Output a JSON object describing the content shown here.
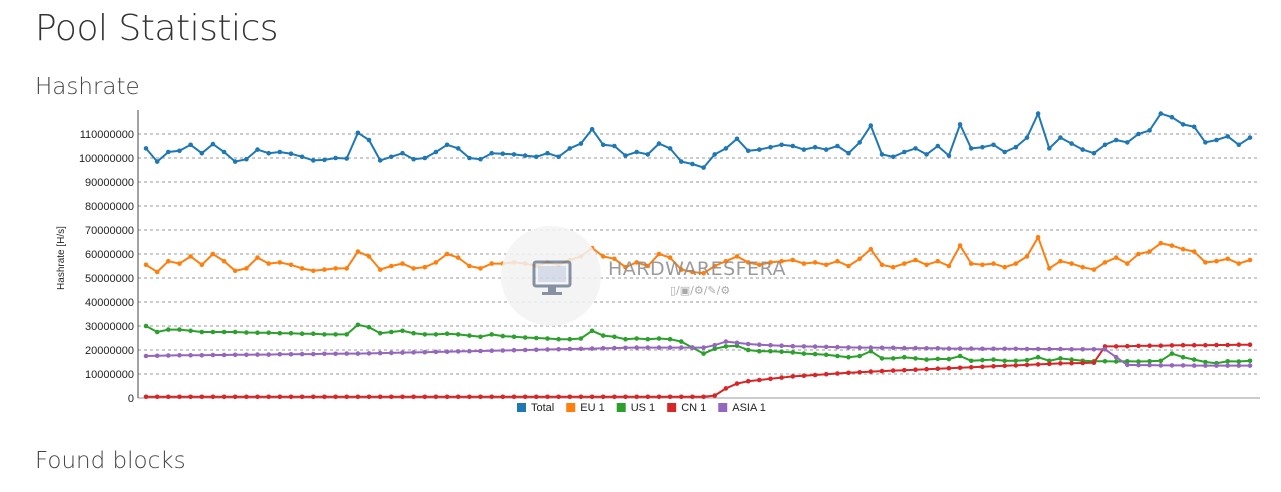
{
  "page": {
    "title": "Pool Statistics",
    "hashrate_title": "Hashrate",
    "found_blocks_title": "Found blocks"
  },
  "watermark": {
    "text": "HARDWARESFERA",
    "subtext": "▯/▣/⚙/✎/⚙",
    "icon": "monitor-icon"
  },
  "chart_data": {
    "type": "line",
    "title": "",
    "xlabel": "",
    "ylabel": "Hashrate [H/s]",
    "ylim": [
      0,
      120000000
    ],
    "yticks": [
      0,
      10000000,
      20000000,
      30000000,
      40000000,
      50000000,
      60000000,
      70000000,
      80000000,
      90000000,
      100000000,
      110000000
    ],
    "ytick_labels": [
      "0",
      "10000000",
      "20000000",
      "30000000",
      "40000000",
      "50000000",
      "60000000",
      "70000000",
      "80000000",
      "90000000",
      "100000000",
      "110000000"
    ],
    "grid": true,
    "legend_position": "bottom",
    "n_points": 100,
    "series": [
      {
        "name": "Total",
        "color": "#1f77b4",
        "values": [
          104000000,
          98500000,
          102500000,
          103000000,
          105500000,
          102000000,
          105800000,
          102500000,
          98500000,
          99500000,
          103500000,
          102000000,
          102500000,
          101800000,
          100500000,
          99000000,
          99200000,
          100000000,
          99800000,
          110500000,
          107500000,
          99000000,
          100500000,
          102000000,
          99500000,
          100000000,
          102500000,
          105500000,
          104000000,
          100000000,
          99500000,
          102000000,
          101800000,
          101500000,
          101000000,
          100500000,
          102000000,
          100500000,
          104000000,
          106000000,
          112000000,
          105500000,
          105000000,
          101000000,
          102500000,
          101500000,
          106000000,
          104000000,
          98500000,
          97500000,
          96000000,
          101500000,
          104000000,
          108000000,
          103000000,
          103500000,
          104500000,
          105500000,
          105000000,
          103500000,
          104500000,
          103500000,
          105000000,
          102000000,
          106500000,
          113500000,
          101500000,
          100500000,
          102500000,
          104000000,
          101500000,
          105000000,
          101000000,
          114000000,
          104000000,
          104500000,
          105500000,
          102500000,
          104500000,
          108500000,
          118500000,
          104000000,
          108500000,
          106000000,
          103500000,
          102000000,
          105500000,
          107500000,
          106500000,
          110000000,
          111500000,
          118500000,
          117000000,
          114000000,
          113000000,
          106500000,
          107500000,
          109000000,
          105500000,
          108500000
        ]
      },
      {
        "name": "EU 1",
        "color": "#ff7f0e",
        "values": [
          55500000,
          52500000,
          57000000,
          56000000,
          59000000,
          55500000,
          60000000,
          57000000,
          53000000,
          54000000,
          58500000,
          56000000,
          56500000,
          55500000,
          54000000,
          53000000,
          53500000,
          54000000,
          54000000,
          61000000,
          59000000,
          53500000,
          55000000,
          56000000,
          54000000,
          54500000,
          56500000,
          60000000,
          58500000,
          55000000,
          54000000,
          56000000,
          56000000,
          56500000,
          56000000,
          55000000,
          56500000,
          55500000,
          57500000,
          59000000,
          62500000,
          59000000,
          58000000,
          54500000,
          56500000,
          55000000,
          60000000,
          58500000,
          53500000,
          52500000,
          52000000,
          55000000,
          57000000,
          59000000,
          56500000,
          55500000,
          56500000,
          57000000,
          57500000,
          56000000,
          56500000,
          55500000,
          57000000,
          55000000,
          58000000,
          62000000,
          55500000,
          54500000,
          56000000,
          57500000,
          55500000,
          57000000,
          55000000,
          63500000,
          56000000,
          55500000,
          56000000,
          54500000,
          56000000,
          59000000,
          67000000,
          54000000,
          57000000,
          56000000,
          54500000,
          53500000,
          56500000,
          58500000,
          56000000,
          60000000,
          61000000,
          64500000,
          63500000,
          62000000,
          61000000,
          56500000,
          57000000,
          58000000,
          56000000,
          57500000
        ]
      },
      {
        "name": "US 1",
        "color": "#2ca02c",
        "values": [
          30000000,
          27500000,
          28500000,
          28500000,
          28000000,
          27500000,
          27500000,
          27500000,
          27500000,
          27300000,
          27200000,
          27200000,
          27000000,
          27000000,
          26800000,
          26800000,
          26500000,
          26500000,
          26500000,
          30500000,
          29500000,
          27000000,
          27500000,
          28000000,
          27000000,
          26500000,
          26500000,
          26800000,
          26500000,
          26000000,
          25500000,
          26500000,
          25800000,
          25500000,
          25200000,
          25000000,
          24800000,
          24500000,
          24500000,
          24800000,
          28000000,
          26000000,
          25500000,
          24500000,
          24800000,
          24500000,
          24800000,
          24500000,
          23500000,
          21000000,
          18500000,
          20500000,
          21500000,
          21800000,
          20000000,
          19500000,
          19500000,
          19300000,
          19000000,
          18500000,
          18300000,
          18000000,
          17500000,
          17000000,
          17500000,
          19500000,
          16500000,
          16500000,
          17000000,
          16500000,
          16000000,
          16300000,
          16200000,
          17500000,
          15500000,
          15800000,
          16000000,
          15500000,
          15500000,
          15800000,
          17000000,
          15500000,
          16500000,
          16000000,
          15500000,
          15300000,
          15300000,
          15200000,
          15300000,
          15200000,
          15300000,
          15500000,
          18500000,
          17000000,
          16000000,
          15000000,
          14500000,
          15300000,
          15200000,
          15500000
        ]
      },
      {
        "name": "CN 1",
        "color": "#d62728",
        "values": [
          500000,
          500000,
          500000,
          500000,
          500000,
          500000,
          500000,
          500000,
          500000,
          500000,
          500000,
          500000,
          500000,
          500000,
          500000,
          500000,
          500000,
          500000,
          500000,
          500000,
          500000,
          500000,
          500000,
          500000,
          500000,
          500000,
          500000,
          500000,
          500000,
          500000,
          500000,
          500000,
          500000,
          500000,
          500000,
          500000,
          500000,
          500000,
          500000,
          500000,
          500000,
          500000,
          500000,
          500000,
          500000,
          500000,
          500000,
          500000,
          500000,
          500000,
          500000,
          1000000,
          4000000,
          6000000,
          7000000,
          7500000,
          8000000,
          8500000,
          9000000,
          9300000,
          9600000,
          9900000,
          10200000,
          10500000,
          10700000,
          11000000,
          11200000,
          11400000,
          11600000,
          11800000,
          12000000,
          12200000,
          12400000,
          12600000,
          12800000,
          13000000,
          13200000,
          13400000,
          13600000,
          13800000,
          14000000,
          14200000,
          14400000,
          14500000,
          14600000,
          14700000,
          21500000,
          21500000,
          21600000,
          21700000,
          21800000,
          21800000,
          21900000,
          22000000,
          22000000,
          22000000,
          22100000,
          22100000,
          22200000,
          22200000
        ]
      },
      {
        "name": "ASIA 1",
        "color": "#9467bd",
        "values": [
          17500000,
          17600000,
          17700000,
          17800000,
          17800000,
          17800000,
          17900000,
          17900000,
          18000000,
          18000000,
          18100000,
          18100000,
          18200000,
          18200000,
          18300000,
          18300000,
          18400000,
          18400000,
          18500000,
          18500000,
          18600000,
          18700000,
          18800000,
          18900000,
          19000000,
          19100000,
          19200000,
          19300000,
          19400000,
          19500000,
          19600000,
          19700000,
          19800000,
          19900000,
          20000000,
          20100000,
          20200000,
          20300000,
          20400000,
          20500000,
          20600000,
          20700000,
          20800000,
          20900000,
          21000000,
          21000000,
          21000000,
          21000000,
          21000000,
          21000000,
          21000000,
          22000000,
          23500000,
          23000000,
          22500000,
          22200000,
          22000000,
          21800000,
          21600000,
          21500000,
          21400000,
          21300000,
          21200000,
          21100000,
          21000000,
          21000000,
          20900000,
          20900000,
          20800000,
          20800000,
          20700000,
          20700000,
          20600000,
          20600000,
          20600000,
          20500000,
          20500000,
          20500000,
          20500000,
          20400000,
          20400000,
          20400000,
          20400000,
          20300000,
          20300000,
          20300000,
          20300000,
          17000000,
          13800000,
          13700000,
          13700000,
          13600000,
          13600000,
          13600000,
          13500000,
          13500000,
          13500000,
          13500000,
          13500000,
          13500000
        ]
      }
    ]
  }
}
